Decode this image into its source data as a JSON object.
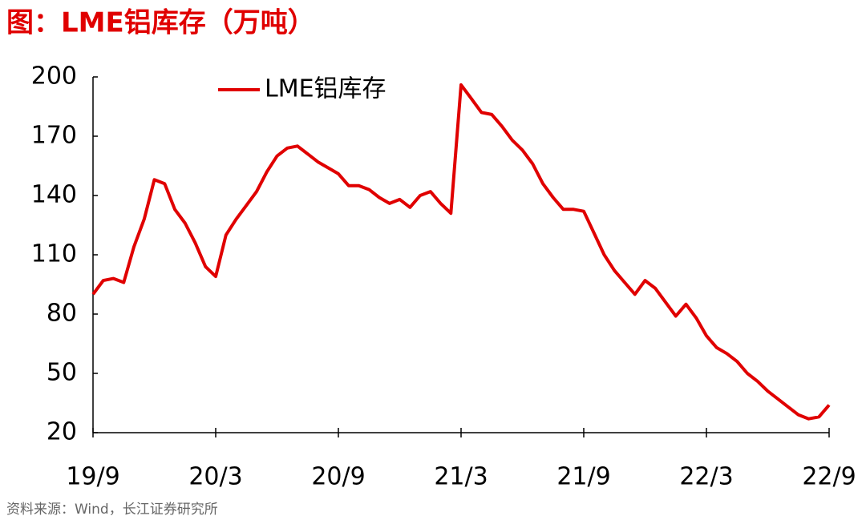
{
  "chart_data": {
    "type": "line",
    "title": "图：LME铝库存（万吨）",
    "source": "资料来源：Wind，长江证券研究所",
    "categories": [
      "19/9",
      null,
      null,
      null,
      null,
      null,
      null,
      null,
      null,
      null,
      null,
      null,
      "20/3",
      null,
      null,
      null,
      null,
      null,
      null,
      null,
      null,
      null,
      null,
      null,
      "20/9",
      null,
      null,
      null,
      null,
      null,
      null,
      null,
      null,
      null,
      null,
      null,
      "21/3",
      null,
      null,
      null,
      null,
      null,
      null,
      null,
      null,
      null,
      null,
      null,
      "21/9",
      null,
      null,
      null,
      null,
      null,
      null,
      null,
      null,
      null,
      null,
      null,
      "22/3",
      null,
      null,
      null,
      null,
      null,
      null,
      null,
      null,
      null,
      null,
      null,
      "22/9"
    ],
    "series": [
      {
        "name": "LME铝库存",
        "color": "#e00000",
        "values": [
          90,
          97,
          98,
          96,
          114,
          128,
          148,
          146,
          133,
          126,
          116,
          104,
          99,
          120,
          128,
          135,
          142,
          152,
          160,
          164,
          165,
          161,
          157,
          154,
          151,
          145,
          145,
          143,
          139,
          136,
          138,
          134,
          140,
          142,
          136,
          131,
          196,
          189,
          182,
          181,
          175,
          168,
          163,
          156,
          146,
          139,
          133,
          133,
          132,
          121,
          110,
          102,
          96,
          90,
          97,
          93,
          86,
          79,
          85,
          78,
          69,
          63,
          60,
          56,
          50,
          46,
          41,
          37,
          33,
          29,
          27,
          28,
          34
        ]
      }
    ],
    "ylim": [
      20,
      200
    ],
    "yticks": [
      20,
      50,
      80,
      110,
      140,
      170,
      200
    ],
    "grid": false,
    "legend": "top-left"
  }
}
